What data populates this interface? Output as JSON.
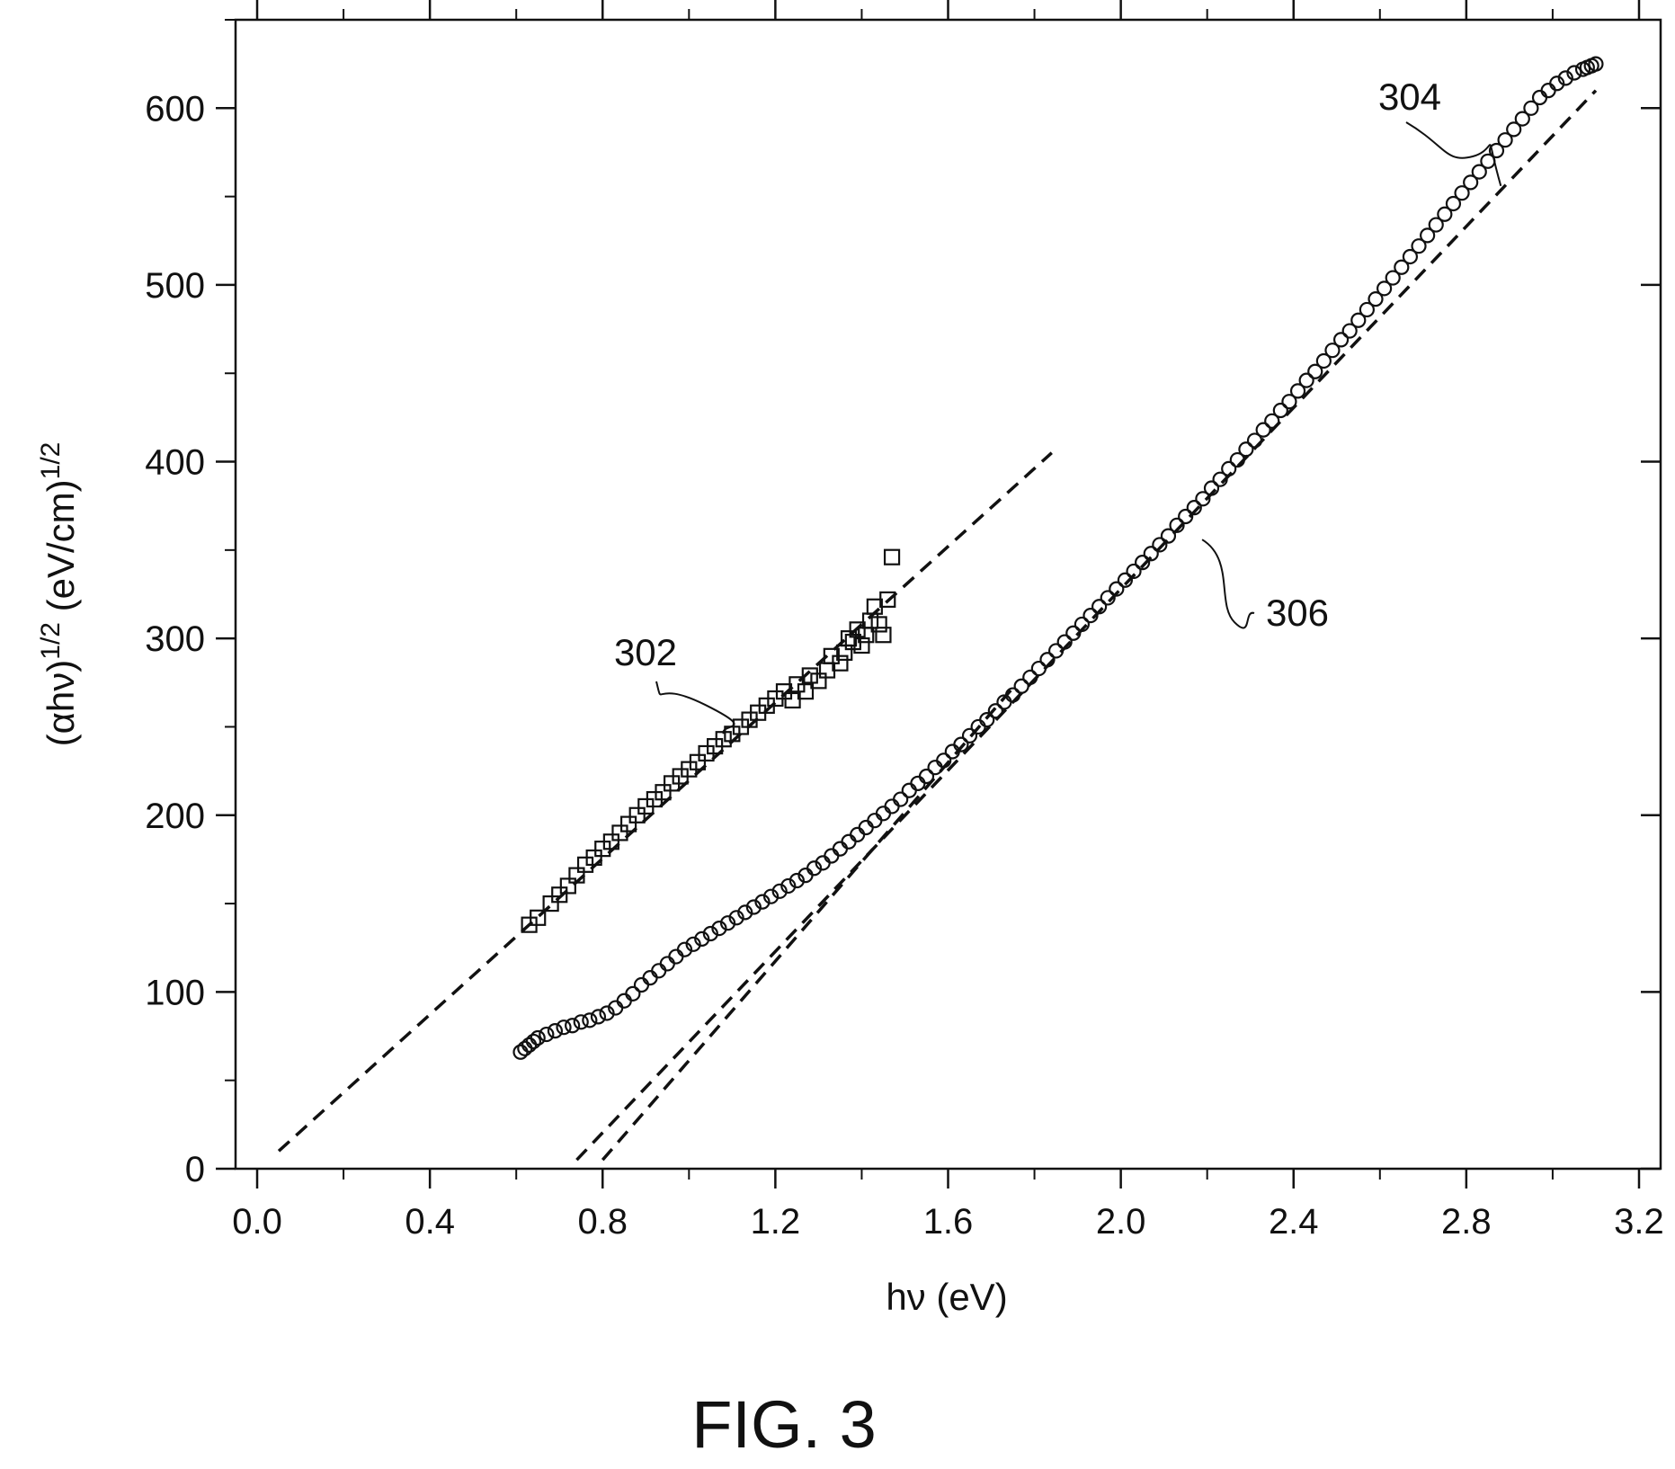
{
  "chart_data": {
    "type": "scatter",
    "title": "",
    "xlabel": "hν (eV)",
    "ylabel_main": "(αhν)",
    "ylabel_exp1": "1/2",
    "ylabel_unit": " (eV/cm)",
    "ylabel_exp2": "1/2",
    "xlim": [
      -0.05,
      3.25
    ],
    "ylim": [
      0,
      650
    ],
    "xticks": [
      "0.0",
      "0.4",
      "0.8",
      "1.2",
      "1.6",
      "2.0",
      "2.4",
      "2.8",
      "3.2"
    ],
    "xtick_values": [
      0.0,
      0.4,
      0.8,
      1.2,
      1.6,
      2.0,
      2.4,
      2.8,
      3.2
    ],
    "yticks": [
      "0",
      "100",
      "200",
      "300",
      "400",
      "500",
      "600"
    ],
    "ytick_values": [
      0,
      100,
      200,
      300,
      400,
      500,
      600
    ],
    "grid": false,
    "legend": "none",
    "series": [
      {
        "marker": "square",
        "points": [
          [
            0.63,
            138
          ],
          [
            0.65,
            142
          ],
          [
            0.68,
            150
          ],
          [
            0.7,
            155
          ],
          [
            0.72,
            160
          ],
          [
            0.74,
            166
          ],
          [
            0.76,
            172
          ],
          [
            0.78,
            176
          ],
          [
            0.8,
            181
          ],
          [
            0.82,
            185
          ],
          [
            0.84,
            190
          ],
          [
            0.86,
            195
          ],
          [
            0.88,
            200
          ],
          [
            0.9,
            205
          ],
          [
            0.92,
            209
          ],
          [
            0.94,
            213
          ],
          [
            0.96,
            218
          ],
          [
            0.98,
            222
          ],
          [
            1.0,
            226
          ],
          [
            1.02,
            230
          ],
          [
            1.04,
            235
          ],
          [
            1.06,
            239
          ],
          [
            1.08,
            243
          ],
          [
            1.1,
            246
          ],
          [
            1.12,
            250
          ],
          [
            1.14,
            254
          ],
          [
            1.16,
            258
          ],
          [
            1.18,
            262
          ],
          [
            1.2,
            266
          ],
          [
            1.22,
            270
          ],
          [
            1.24,
            265
          ],
          [
            1.25,
            274
          ],
          [
            1.27,
            270
          ],
          [
            1.28,
            279
          ],
          [
            1.3,
            276
          ],
          [
            1.32,
            282
          ],
          [
            1.33,
            290
          ],
          [
            1.35,
            286
          ],
          [
            1.36,
            292
          ],
          [
            1.37,
            300
          ],
          [
            1.38,
            298
          ],
          [
            1.39,
            305
          ],
          [
            1.4,
            296
          ],
          [
            1.41,
            302
          ],
          [
            1.42,
            310
          ],
          [
            1.43,
            318
          ],
          [
            1.44,
            308
          ],
          [
            1.45,
            302
          ],
          [
            1.46,
            322
          ],
          [
            1.47,
            346
          ]
        ]
      },
      {
        "marker": "circle",
        "points": [
          [
            0.61,
            66
          ],
          [
            0.62,
            68
          ],
          [
            0.63,
            70
          ],
          [
            0.64,
            72
          ],
          [
            0.65,
            74
          ],
          [
            0.67,
            76
          ],
          [
            0.69,
            78
          ],
          [
            0.71,
            80
          ],
          [
            0.73,
            81
          ],
          [
            0.75,
            83
          ],
          [
            0.77,
            84
          ],
          [
            0.79,
            86
          ],
          [
            0.81,
            88
          ],
          [
            0.83,
            91
          ],
          [
            0.85,
            95
          ],
          [
            0.87,
            99
          ],
          [
            0.89,
            104
          ],
          [
            0.91,
            108
          ],
          [
            0.93,
            112
          ],
          [
            0.95,
            116
          ],
          [
            0.97,
            120
          ],
          [
            0.99,
            124
          ],
          [
            1.01,
            127
          ],
          [
            1.03,
            130
          ],
          [
            1.05,
            133
          ],
          [
            1.07,
            136
          ],
          [
            1.09,
            139
          ],
          [
            1.11,
            142
          ],
          [
            1.13,
            145
          ],
          [
            1.15,
            148
          ],
          [
            1.17,
            151
          ],
          [
            1.19,
            154
          ],
          [
            1.21,
            157
          ],
          [
            1.23,
            160
          ],
          [
            1.25,
            163
          ],
          [
            1.27,
            166
          ],
          [
            1.29,
            170
          ],
          [
            1.31,
            173
          ],
          [
            1.33,
            177
          ],
          [
            1.35,
            181
          ],
          [
            1.37,
            185
          ],
          [
            1.39,
            189
          ],
          [
            1.41,
            193
          ],
          [
            1.43,
            197
          ],
          [
            1.45,
            201
          ],
          [
            1.47,
            205
          ],
          [
            1.49,
            209
          ],
          [
            1.51,
            214
          ],
          [
            1.53,
            218
          ],
          [
            1.55,
            222
          ],
          [
            1.57,
            227
          ],
          [
            1.59,
            231
          ],
          [
            1.61,
            236
          ],
          [
            1.63,
            240
          ],
          [
            1.65,
            245
          ],
          [
            1.67,
            250
          ],
          [
            1.69,
            254
          ],
          [
            1.71,
            259
          ],
          [
            1.73,
            264
          ],
          [
            1.75,
            268
          ],
          [
            1.77,
            273
          ],
          [
            1.79,
            278
          ],
          [
            1.81,
            283
          ],
          [
            1.83,
            288
          ],
          [
            1.85,
            293
          ],
          [
            1.87,
            298
          ],
          [
            1.89,
            303
          ],
          [
            1.91,
            308
          ],
          [
            1.93,
            313
          ],
          [
            1.95,
            318
          ],
          [
            1.97,
            323
          ],
          [
            1.99,
            328
          ],
          [
            2.01,
            333
          ],
          [
            2.03,
            338
          ],
          [
            2.05,
            343
          ],
          [
            2.07,
            348
          ],
          [
            2.09,
            353
          ],
          [
            2.11,
            358
          ],
          [
            2.13,
            364
          ],
          [
            2.15,
            369
          ],
          [
            2.17,
            374
          ],
          [
            2.19,
            379
          ],
          [
            2.21,
            385
          ],
          [
            2.23,
            390
          ],
          [
            2.25,
            396
          ],
          [
            2.27,
            401
          ],
          [
            2.29,
            407
          ],
          [
            2.31,
            412
          ],
          [
            2.33,
            418
          ],
          [
            2.35,
            423
          ],
          [
            2.37,
            429
          ],
          [
            2.39,
            434
          ],
          [
            2.41,
            440
          ],
          [
            2.43,
            446
          ],
          [
            2.45,
            451
          ],
          [
            2.47,
            457
          ],
          [
            2.49,
            463
          ],
          [
            2.51,
            469
          ],
          [
            2.53,
            474
          ],
          [
            2.55,
            480
          ],
          [
            2.57,
            486
          ],
          [
            2.59,
            492
          ],
          [
            2.61,
            498
          ],
          [
            2.63,
            504
          ],
          [
            2.65,
            510
          ],
          [
            2.67,
            516
          ],
          [
            2.69,
            522
          ],
          [
            2.71,
            528
          ],
          [
            2.73,
            534
          ],
          [
            2.75,
            540
          ],
          [
            2.77,
            546
          ],
          [
            2.79,
            552
          ],
          [
            2.81,
            558
          ],
          [
            2.83,
            564
          ],
          [
            2.85,
            570
          ],
          [
            2.87,
            576
          ],
          [
            2.89,
            582
          ],
          [
            2.91,
            588
          ],
          [
            2.93,
            594
          ],
          [
            2.95,
            600
          ],
          [
            2.97,
            606
          ],
          [
            2.99,
            610
          ],
          [
            3.01,
            614
          ],
          [
            3.03,
            617
          ],
          [
            3.05,
            620
          ],
          [
            3.07,
            622
          ],
          [
            3.08,
            623
          ],
          [
            3.09,
            624
          ],
          [
            3.1,
            625
          ]
        ]
      }
    ],
    "fit_lines": [
      {
        "style": "dashed",
        "x": [
          0.05,
          1.84
        ],
        "y": [
          10,
          405
        ]
      },
      {
        "style": "dashed",
        "x": [
          0.74,
          3.1
        ],
        "y": [
          5,
          610
        ]
      },
      {
        "style": "dashed",
        "x": [
          0.8,
          1.75
        ],
        "y": [
          5,
          272
        ]
      }
    ],
    "annotations": [
      {
        "label": "302",
        "target": [
          1.08,
          242
        ]
      },
      {
        "label": "304",
        "target": [
          2.88,
          556
        ]
      },
      {
        "label": "306",
        "target": [
          2.18,
          360
        ]
      }
    ]
  },
  "caption": "FIG. 3"
}
